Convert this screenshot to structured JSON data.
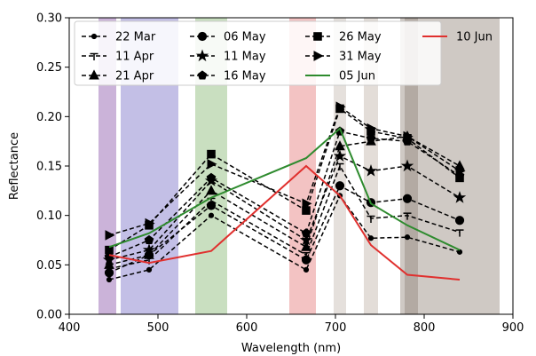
{
  "chart_data": {
    "type": "line",
    "xlabel": "Wavelength (nm)",
    "ylabel": "Reflectance",
    "xlim": [
      400,
      900
    ],
    "ylim": [
      0.0,
      0.3
    ],
    "x_ticks": [
      400,
      500,
      600,
      700,
      800,
      900
    ],
    "y_ticks": [
      0.0,
      0.05,
      0.1,
      0.15,
      0.2,
      0.25,
      0.3
    ],
    "grid": false,
    "legend_position": "top",
    "legend_columns": 4,
    "bands": [
      {
        "from": 433,
        "to": 453,
        "color": "#cbb3d9"
      },
      {
        "from": 458,
        "to": 523,
        "color": "#c3bfe6"
      },
      {
        "from": 542,
        "to": 578,
        "color": "#c9dfc0"
      },
      {
        "from": 648,
        "to": 678,
        "color": "#f3c3c3"
      },
      {
        "from": 698,
        "to": 712,
        "color": "#e5e0dc"
      },
      {
        "from": 732,
        "to": 748,
        "color": "#e3ddd8"
      },
      {
        "from": 773,
        "to": 885,
        "color": "#cfc9c4"
      },
      {
        "from": 778,
        "to": 793,
        "color": "#b3aaa3"
      }
    ],
    "x": [
      445,
      490,
      560,
      667,
      705,
      740,
      781,
      840
    ],
    "series": [
      {
        "name": "22 Mar",
        "marker": "dot",
        "dashed": true,
        "color": "#000000",
        "values": [
          0.035,
          0.045,
          0.1,
          0.045,
          0.12,
          0.077,
          0.078,
          0.063
        ]
      },
      {
        "name": "11 Apr",
        "marker": "tri_down",
        "dashed": true,
        "color": "#000000",
        "values": [
          0.046,
          0.055,
          0.115,
          0.06,
          0.15,
          0.097,
          0.1,
          0.083
        ]
      },
      {
        "name": "21 Apr",
        "marker": "triangle",
        "dashed": true,
        "color": "#000000",
        "values": [
          0.05,
          0.06,
          0.125,
          0.068,
          0.17,
          0.175,
          0.18,
          0.15
        ]
      },
      {
        "name": "06 May",
        "marker": "circle",
        "dashed": true,
        "color": "#000000",
        "values": [
          0.042,
          0.06,
          0.11,
          0.055,
          0.13,
          0.113,
          0.117,
          0.095
        ]
      },
      {
        "name": "11 May",
        "marker": "star",
        "dashed": true,
        "color": "#000000",
        "values": [
          0.055,
          0.065,
          0.135,
          0.075,
          0.16,
          0.145,
          0.15,
          0.118
        ]
      },
      {
        "name": "16 May",
        "marker": "pentagon",
        "dashed": true,
        "color": "#000000",
        "values": [
          0.058,
          0.075,
          0.138,
          0.082,
          0.185,
          0.178,
          0.175,
          0.14
        ]
      },
      {
        "name": "26 May",
        "marker": "square",
        "dashed": true,
        "color": "#000000",
        "values": [
          0.065,
          0.09,
          0.162,
          0.105,
          0.208,
          0.185,
          0.178,
          0.138
        ]
      },
      {
        "name": "31 May",
        "marker": "tri_right",
        "dashed": true,
        "color": "#000000",
        "values": [
          0.08,
          0.092,
          0.152,
          0.112,
          0.21,
          0.188,
          0.18,
          0.145
        ]
      },
      {
        "name": "05 Jun",
        "marker": "none",
        "dashed": false,
        "color": "#2e8b2e",
        "values": [
          0.068,
          0.082,
          0.118,
          0.158,
          0.188,
          0.112,
          0.09,
          0.065
        ]
      },
      {
        "name": "10 Jun",
        "marker": "none",
        "dashed": false,
        "color": "#e0302e",
        "values": [
          0.06,
          0.052,
          0.064,
          0.15,
          0.12,
          0.07,
          0.04,
          0.035
        ]
      }
    ]
  }
}
